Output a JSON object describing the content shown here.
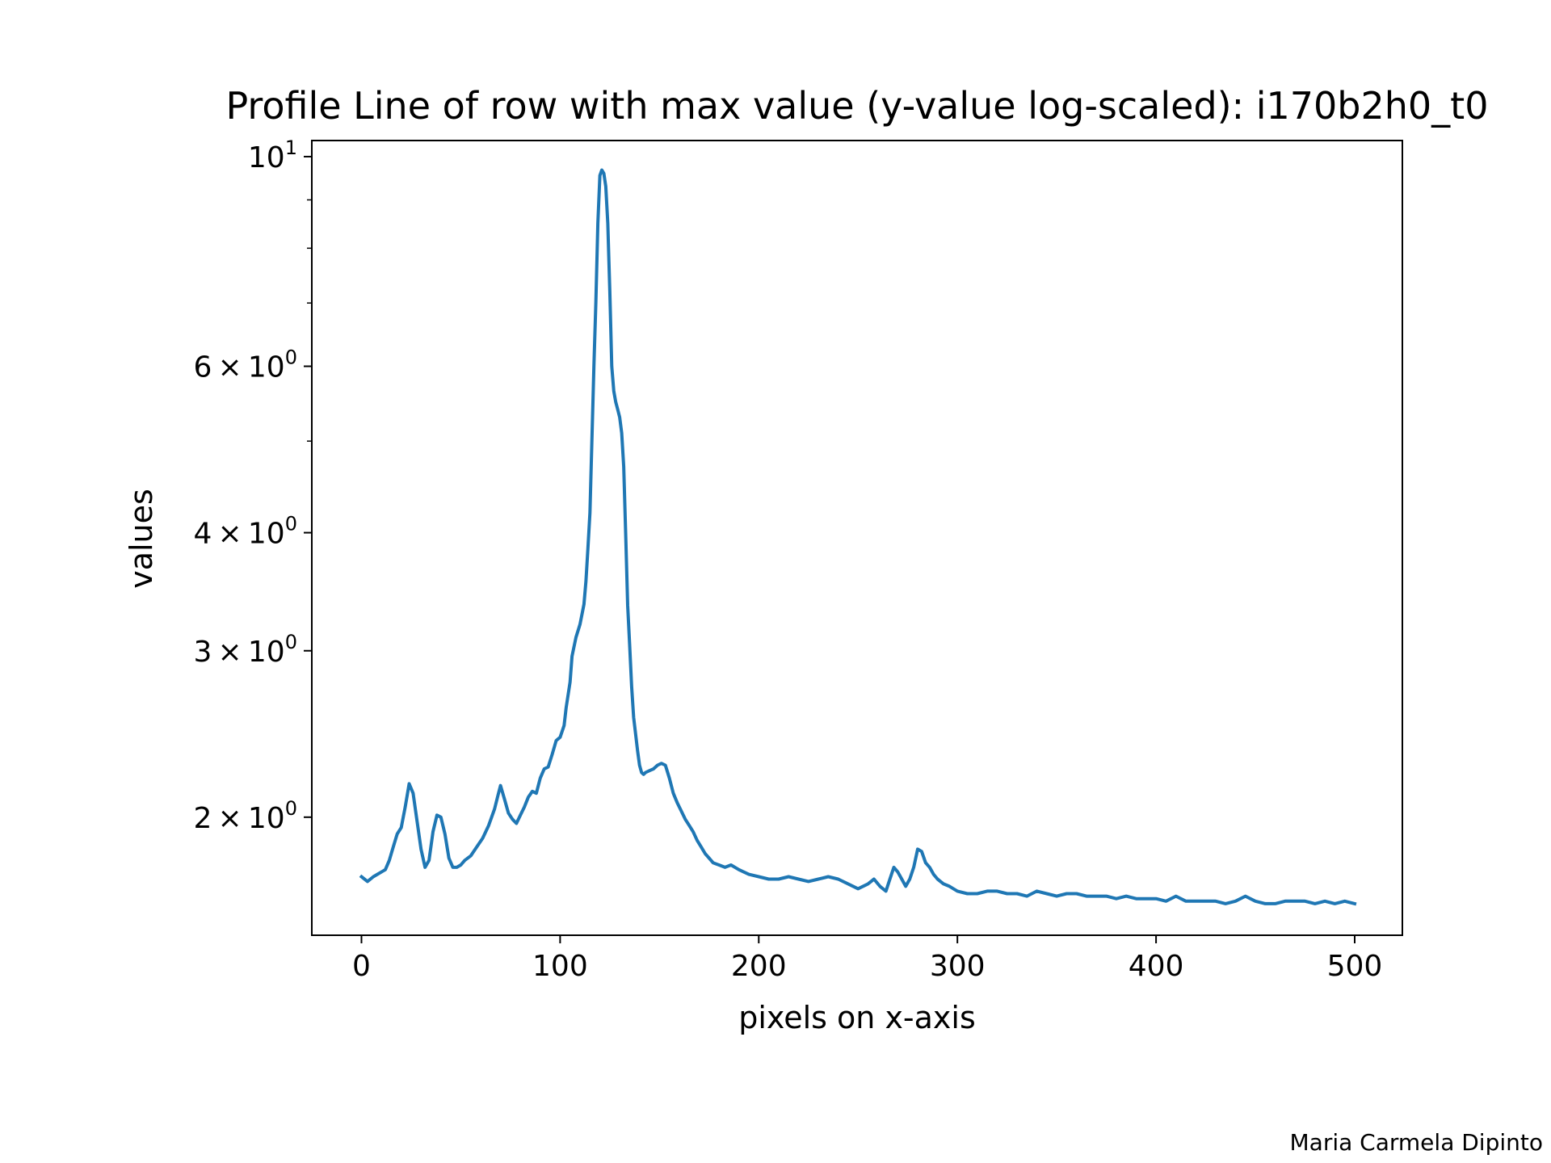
{
  "chart_data": {
    "type": "line",
    "title": "Profile Line of row with max value (y-value log-scaled): i170b2h0_t0",
    "xlabel": "pixels on x-axis",
    "ylabel": "values",
    "xscale": "linear",
    "yscale": "log",
    "xlim": [
      -25,
      524
    ],
    "ylim": [
      1.5,
      10.4
    ],
    "grid": false,
    "legend": "none",
    "x_ticks": [
      {
        "value": 0,
        "label": "0"
      },
      {
        "value": 100,
        "label": "100"
      },
      {
        "value": 200,
        "label": "200"
      },
      {
        "value": 300,
        "label": "300"
      },
      {
        "value": 400,
        "label": "400"
      },
      {
        "value": 500,
        "label": "500"
      }
    ],
    "y_ticks": [
      {
        "value": 2,
        "mantissa": "2",
        "base": "10",
        "exponent": "0"
      },
      {
        "value": 3,
        "mantissa": "3",
        "base": "10",
        "exponent": "0"
      },
      {
        "value": 4,
        "mantissa": "4",
        "base": "10",
        "exponent": "0"
      },
      {
        "value": 6,
        "mantissa": "6",
        "base": "10",
        "exponent": "0"
      },
      {
        "value": 10,
        "mantissa": "",
        "base": "10",
        "exponent": "1"
      }
    ],
    "y_minor_ticks": [
      5,
      7,
      8,
      9
    ],
    "series": [
      {
        "color": "#1f77b4",
        "points": [
          [
            0,
            1.73
          ],
          [
            3,
            1.71
          ],
          [
            6,
            1.73
          ],
          [
            8,
            1.74
          ],
          [
            10,
            1.75
          ],
          [
            12,
            1.76
          ],
          [
            14,
            1.8
          ],
          [
            16,
            1.86
          ],
          [
            18,
            1.92
          ],
          [
            20,
            1.95
          ],
          [
            22,
            2.05
          ],
          [
            24,
            2.17
          ],
          [
            26,
            2.12
          ],
          [
            28,
            1.98
          ],
          [
            30,
            1.85
          ],
          [
            32,
            1.77
          ],
          [
            34,
            1.8
          ],
          [
            36,
            1.93
          ],
          [
            38,
            2.01
          ],
          [
            40,
            2.0
          ],
          [
            42,
            1.92
          ],
          [
            44,
            1.81
          ],
          [
            46,
            1.77
          ],
          [
            48,
            1.77
          ],
          [
            50,
            1.78
          ],
          [
            52,
            1.8
          ],
          [
            55,
            1.82
          ],
          [
            58,
            1.86
          ],
          [
            61,
            1.9
          ],
          [
            64,
            1.96
          ],
          [
            67,
            2.04
          ],
          [
            69,
            2.12
          ],
          [
            70,
            2.16
          ],
          [
            72,
            2.09
          ],
          [
            74,
            2.02
          ],
          [
            76,
            1.99
          ],
          [
            78,
            1.97
          ],
          [
            80,
            2.01
          ],
          [
            82,
            2.05
          ],
          [
            84,
            2.1
          ],
          [
            86,
            2.13
          ],
          [
            88,
            2.12
          ],
          [
            90,
            2.2
          ],
          [
            92,
            2.25
          ],
          [
            94,
            2.26
          ],
          [
            96,
            2.33
          ],
          [
            98,
            2.41
          ],
          [
            100,
            2.43
          ],
          [
            102,
            2.5
          ],
          [
            103,
            2.61
          ],
          [
            105,
            2.78
          ],
          [
            106,
            2.96
          ],
          [
            108,
            3.1
          ],
          [
            110,
            3.2
          ],
          [
            112,
            3.36
          ],
          [
            113,
            3.55
          ],
          [
            114,
            3.85
          ],
          [
            115,
            4.2
          ],
          [
            116,
            5.0
          ],
          [
            117,
            6.0
          ],
          [
            118,
            7.0
          ],
          [
            119,
            8.5
          ],
          [
            120,
            9.55
          ],
          [
            121,
            9.68
          ],
          [
            122,
            9.6
          ],
          [
            123,
            9.3
          ],
          [
            124,
            8.5
          ],
          [
            125,
            7.2
          ],
          [
            126,
            6.0
          ],
          [
            127,
            5.65
          ],
          [
            128,
            5.5
          ],
          [
            129,
            5.4
          ],
          [
            130,
            5.3
          ],
          [
            131,
            5.1
          ],
          [
            132,
            4.7
          ],
          [
            133,
            4.0
          ],
          [
            134,
            3.35
          ],
          [
            135,
            3.05
          ],
          [
            136,
            2.75
          ],
          [
            137,
            2.55
          ],
          [
            138,
            2.45
          ],
          [
            139,
            2.35
          ],
          [
            140,
            2.27
          ],
          [
            141,
            2.23
          ],
          [
            142,
            2.22
          ],
          [
            143,
            2.23
          ],
          [
            145,
            2.24
          ],
          [
            147,
            2.25
          ],
          [
            149,
            2.27
          ],
          [
            151,
            2.28
          ],
          [
            153,
            2.27
          ],
          [
            155,
            2.2
          ],
          [
            157,
            2.12
          ],
          [
            159,
            2.07
          ],
          [
            161,
            2.03
          ],
          [
            163,
            1.99
          ],
          [
            165,
            1.96
          ],
          [
            167,
            1.93
          ],
          [
            169,
            1.89
          ],
          [
            171,
            1.86
          ],
          [
            173,
            1.83
          ],
          [
            175,
            1.81
          ],
          [
            177,
            1.79
          ],
          [
            180,
            1.78
          ],
          [
            183,
            1.77
          ],
          [
            186,
            1.78
          ],
          [
            190,
            1.76
          ],
          [
            195,
            1.74
          ],
          [
            200,
            1.73
          ],
          [
            205,
            1.72
          ],
          [
            210,
            1.72
          ],
          [
            215,
            1.73
          ],
          [
            220,
            1.72
          ],
          [
            225,
            1.71
          ],
          [
            230,
            1.72
          ],
          [
            235,
            1.73
          ],
          [
            240,
            1.72
          ],
          [
            245,
            1.7
          ],
          [
            250,
            1.68
          ],
          [
            255,
            1.7
          ],
          [
            258,
            1.72
          ],
          [
            261,
            1.69
          ],
          [
            264,
            1.67
          ],
          [
            266,
            1.72
          ],
          [
            268,
            1.77
          ],
          [
            270,
            1.75
          ],
          [
            272,
            1.72
          ],
          [
            274,
            1.69
          ],
          [
            276,
            1.72
          ],
          [
            278,
            1.77
          ],
          [
            280,
            1.85
          ],
          [
            282,
            1.84
          ],
          [
            284,
            1.79
          ],
          [
            286,
            1.77
          ],
          [
            288,
            1.74
          ],
          [
            290,
            1.72
          ],
          [
            293,
            1.7
          ],
          [
            296,
            1.69
          ],
          [
            300,
            1.67
          ],
          [
            305,
            1.66
          ],
          [
            310,
            1.66
          ],
          [
            315,
            1.67
          ],
          [
            320,
            1.67
          ],
          [
            325,
            1.66
          ],
          [
            330,
            1.66
          ],
          [
            335,
            1.65
          ],
          [
            340,
            1.67
          ],
          [
            345,
            1.66
          ],
          [
            350,
            1.65
          ],
          [
            355,
            1.66
          ],
          [
            360,
            1.66
          ],
          [
            365,
            1.65
          ],
          [
            370,
            1.65
          ],
          [
            375,
            1.65
          ],
          [
            380,
            1.64
          ],
          [
            385,
            1.65
          ],
          [
            390,
            1.64
          ],
          [
            395,
            1.64
          ],
          [
            400,
            1.64
          ],
          [
            405,
            1.63
          ],
          [
            410,
            1.65
          ],
          [
            415,
            1.63
          ],
          [
            420,
            1.63
          ],
          [
            425,
            1.63
          ],
          [
            430,
            1.63
          ],
          [
            435,
            1.62
          ],
          [
            440,
            1.63
          ],
          [
            445,
            1.65
          ],
          [
            450,
            1.63
          ],
          [
            455,
            1.62
          ],
          [
            460,
            1.62
          ],
          [
            465,
            1.63
          ],
          [
            470,
            1.63
          ],
          [
            475,
            1.63
          ],
          [
            480,
            1.62
          ],
          [
            485,
            1.63
          ],
          [
            490,
            1.62
          ],
          [
            495,
            1.63
          ],
          [
            500,
            1.62
          ]
        ]
      }
    ]
  },
  "credit": "Maria Carmela Dipinto"
}
